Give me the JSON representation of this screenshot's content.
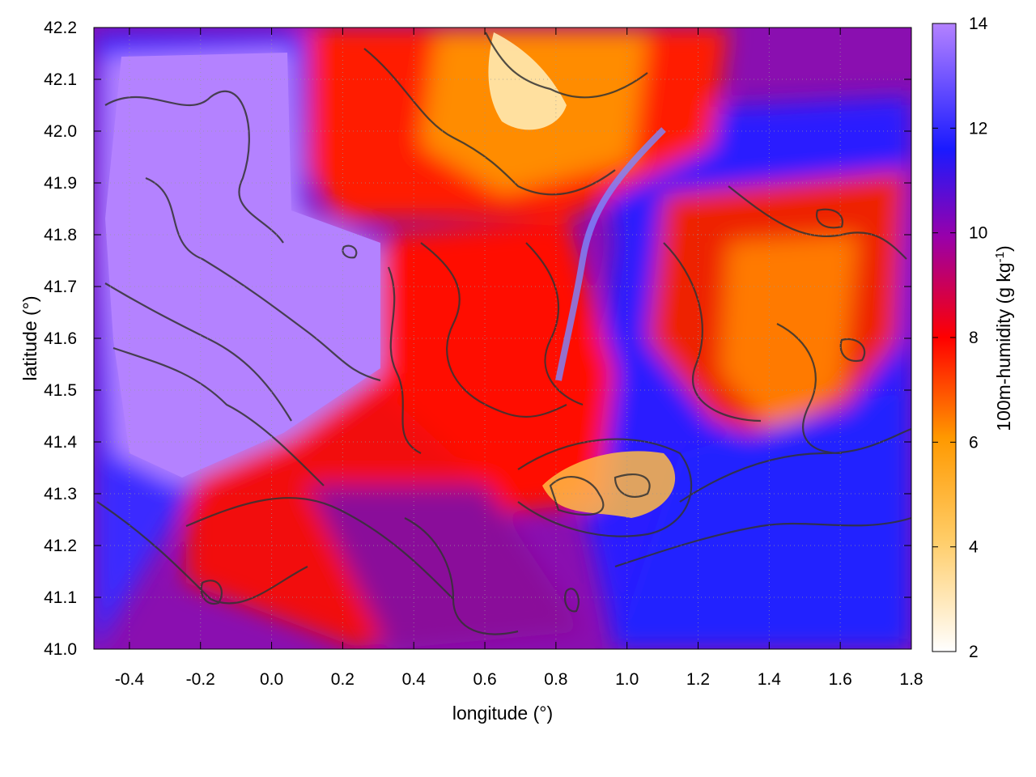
{
  "chart_data": {
    "type": "heatmap",
    "title": "",
    "xlabel": "longitude (°)",
    "ylabel": "latitude (°)",
    "xlim": [
      -0.5,
      1.8
    ],
    "ylim": [
      41.0,
      42.2
    ],
    "x_ticks": [
      "-0.4",
      "-0.2",
      "0.0",
      "0.2",
      "0.4",
      "0.6",
      "0.8",
      "1.0",
      "1.2",
      "1.4",
      "1.6",
      "1.8"
    ],
    "y_ticks": [
      "41.0",
      "41.1",
      "41.2",
      "41.3",
      "41.4",
      "41.5",
      "41.6",
      "41.7",
      "41.8",
      "41.9",
      "42.0",
      "42.1",
      "42.2"
    ],
    "colorbar": {
      "label": "100m-humidity (g kg",
      "label_sup": "-1",
      "label_end": ")",
      "range": [
        2,
        14
      ],
      "ticks": [
        "2",
        "4",
        "6",
        "8",
        "10",
        "12",
        "14"
      ],
      "palette": [
        "#ffffff",
        "#ffcc66",
        "#ff9900",
        "#ff0000",
        "#9900aa",
        "#1a1aff",
        "#b482ff"
      ]
    },
    "grid": "dotted",
    "overlay": "terrain contour lines (dark grey)",
    "regions": [
      {
        "name": "moist-northwest",
        "humidity": 14,
        "lon": [
          -0.45,
          0.3
        ],
        "lat": [
          41.45,
          42.15
        ]
      },
      {
        "name": "dry-northern-ridge",
        "humidity": 3,
        "lon": [
          0.6,
          0.95
        ],
        "lat": [
          41.9,
          42.2
        ]
      },
      {
        "name": "central-red-band",
        "humidity": 8,
        "lon": [
          0.3,
          0.85
        ],
        "lat": [
          41.3,
          41.85
        ]
      },
      {
        "name": "dry-valley-patch",
        "humidity": 4,
        "lon": [
          0.75,
          1.1
        ],
        "lat": [
          41.25,
          41.4
        ]
      },
      {
        "name": "moist-southeast",
        "humidity": 11,
        "lon": [
          1.1,
          1.8
        ],
        "lat": [
          41.0,
          41.45
        ]
      },
      {
        "name": "eastern-red-orange",
        "humidity": 7,
        "lon": [
          1.1,
          1.75
        ],
        "lat": [
          41.45,
          41.95
        ]
      }
    ]
  }
}
